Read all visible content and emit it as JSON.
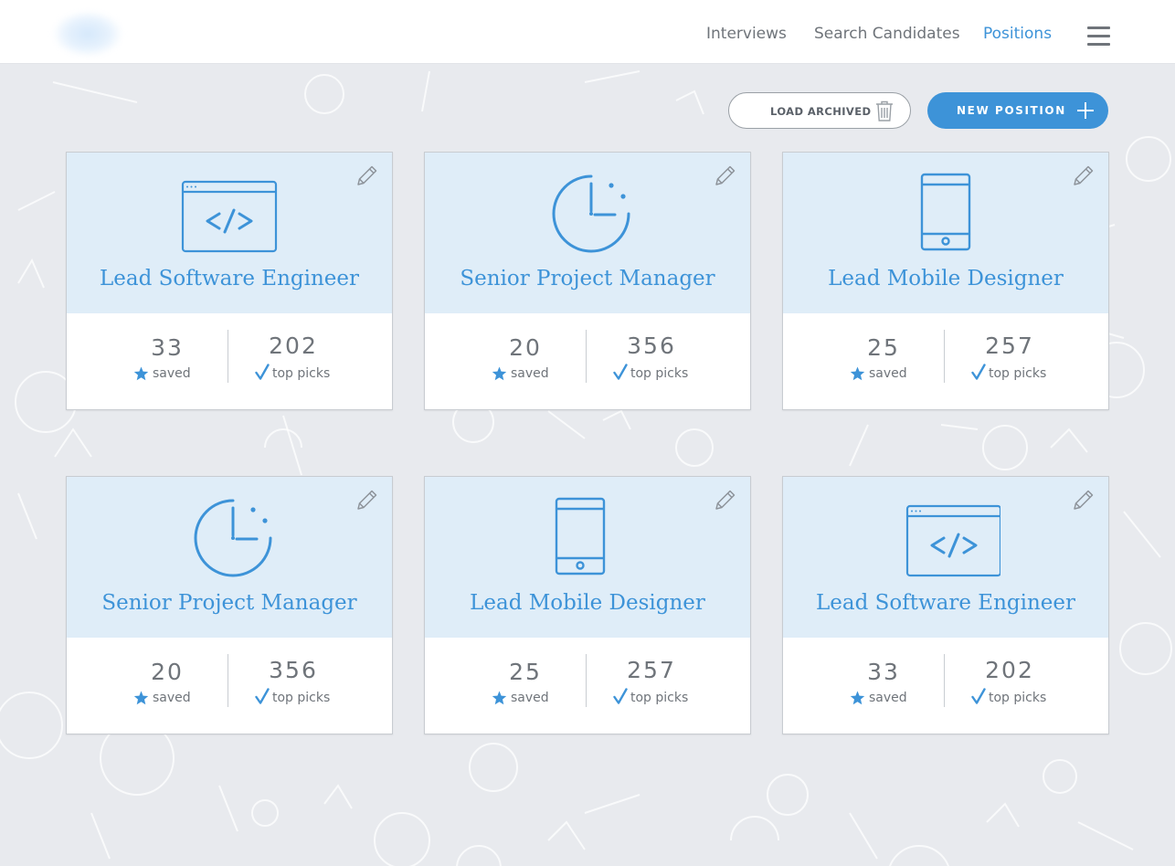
{
  "nav": {
    "items": [
      {
        "label": "Interviews",
        "active": false
      },
      {
        "label": "Search Candidates",
        "active": false
      },
      {
        "label": "Positions",
        "active": true
      }
    ],
    "menu_icon": "hamburger-menu-icon"
  },
  "actions": {
    "load_archived_label": "LOAD ARCHIVED",
    "load_archived_icon": "trash-icon",
    "new_position_label": "NEW POSITION",
    "new_position_icon": "plus-icon"
  },
  "colors": {
    "accent": "#3d93d8",
    "card_header_bg": "#dfedf8",
    "page_bg": "#e8eaee",
    "text_muted": "#6f747a"
  },
  "positions": [
    {
      "title": "Lead Software Engineer",
      "icon": "code-window-icon",
      "saved": "33",
      "saved_label": "saved",
      "top_picks": "202",
      "top_picks_label": "top picks"
    },
    {
      "title": "Senior Project Manager",
      "icon": "clock-chart-icon",
      "saved": "20",
      "saved_label": "saved",
      "top_picks": "356",
      "top_picks_label": "top picks"
    },
    {
      "title": "Lead Mobile Designer",
      "icon": "mobile-device-icon",
      "saved": "25",
      "saved_label": "saved",
      "top_picks": "257",
      "top_picks_label": "top picks"
    },
    {
      "title": "Senior Project Manager",
      "icon": "clock-chart-icon",
      "saved": "20",
      "saved_label": "saved",
      "top_picks": "356",
      "top_picks_label": "top picks"
    },
    {
      "title": "Lead Mobile Designer",
      "icon": "mobile-device-icon",
      "saved": "25",
      "saved_label": "saved",
      "top_picks": "257",
      "top_picks_label": "top picks"
    },
    {
      "title": "Lead Software Engineer",
      "icon": "code-window-icon",
      "saved": "33",
      "saved_label": "saved",
      "top_picks": "202",
      "top_picks_label": "top picks"
    }
  ]
}
